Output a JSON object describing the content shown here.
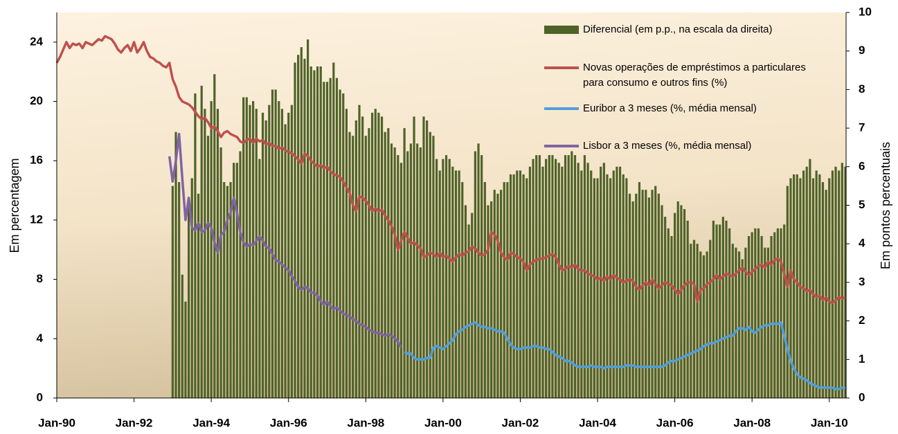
{
  "chart_data": {
    "type": "bar-line",
    "y_label": "Em percentagem",
    "y2_label": "Em pontos percentuais",
    "categories": [
      "Jan-90",
      null,
      null,
      null,
      null,
      null,
      null,
      null,
      null,
      null,
      null,
      null,
      null,
      null,
      null,
      null,
      null,
      null,
      null,
      null,
      null,
      null,
      null,
      null,
      "Jan-92",
      null,
      null,
      null,
      null,
      null,
      null,
      null,
      null,
      null,
      null,
      null,
      null,
      null,
      null,
      null,
      null,
      null,
      null,
      null,
      null,
      null,
      null,
      null,
      "Jan-94",
      null,
      null,
      null,
      null,
      null,
      null,
      null,
      null,
      null,
      null,
      null,
      null,
      null,
      null,
      null,
      null,
      null,
      null,
      null,
      null,
      null,
      null,
      null,
      "Jan-96",
      null,
      null,
      null,
      null,
      null,
      null,
      null,
      null,
      null,
      null,
      null,
      null,
      null,
      null,
      null,
      null,
      null,
      null,
      null,
      null,
      null,
      null,
      null,
      "Jan-98",
      null,
      null,
      null,
      null,
      null,
      null,
      null,
      null,
      null,
      null,
      null,
      null,
      null,
      null,
      null,
      null,
      null,
      null,
      null,
      null,
      null,
      null,
      null,
      "Jan-00",
      null,
      null,
      null,
      null,
      null,
      null,
      null,
      null,
      null,
      null,
      null,
      null,
      null,
      null,
      null,
      null,
      null,
      null,
      null,
      null,
      null,
      null,
      null,
      "Jan-02",
      null,
      null,
      null,
      null,
      null,
      null,
      null,
      null,
      null,
      null,
      null,
      null,
      null,
      null,
      null,
      null,
      null,
      null,
      null,
      null,
      null,
      null,
      null,
      "Jan-04",
      null,
      null,
      null,
      null,
      null,
      null,
      null,
      null,
      null,
      null,
      null,
      null,
      null,
      null,
      null,
      null,
      null,
      null,
      null,
      null,
      null,
      null,
      null,
      "Jan-06",
      null,
      null,
      null,
      null,
      null,
      null,
      null,
      null,
      null,
      null,
      null,
      null,
      null,
      null,
      null,
      null,
      null,
      null,
      null,
      null,
      null,
      null,
      null,
      "Jan-08",
      null,
      null,
      null,
      null,
      null,
      null,
      null,
      null,
      null,
      null,
      null,
      null,
      null,
      null,
      null,
      null,
      null,
      null,
      null,
      null,
      null,
      null,
      null,
      "Jan-10",
      null,
      null,
      null,
      null,
      null
    ],
    "series": [
      {
        "name": "Diferencial (em p.p., na escala da direita)",
        "type": "bar",
        "axis": "y2",
        "color": "#4f6228",
        "values": [
          null,
          null,
          null,
          null,
          null,
          null,
          null,
          null,
          null,
          null,
          null,
          null,
          null,
          null,
          null,
          null,
          null,
          null,
          null,
          null,
          null,
          null,
          null,
          null,
          null,
          null,
          null,
          null,
          null,
          null,
          null,
          null,
          null,
          null,
          null,
          null,
          5.5,
          6.9,
          5.6,
          3.2,
          2.5,
          5.2,
          5.7,
          7.9,
          5.3,
          8.1,
          7.5,
          6.8,
          7.7,
          8.4,
          7.5,
          6.5,
          5.6,
          5.5,
          5.6,
          6.1,
          6.1,
          6.4,
          7.8,
          7.8,
          7.6,
          7.7,
          7.5,
          6.2,
          7.4,
          7.2,
          7.6,
          8.0,
          8.0,
          7.7,
          7.5,
          7.1,
          7.4,
          7.6,
          8.7,
          8.9,
          9.1,
          8.8,
          9.3,
          8.6,
          8.5,
          8.6,
          8.6,
          8.2,
          8.2,
          8.3,
          8.7,
          8.3,
          8.0,
          7.9,
          7.5,
          6.9,
          6.8,
          7.2,
          7.6,
          7.3,
          6.8,
          7.0,
          7.4,
          7.5,
          7.4,
          7.3,
          6.9,
          7.0,
          6.6,
          6.5,
          6.3,
          6.1,
          7.0,
          6.4,
          6.6,
          7.3,
          6.6,
          6.5,
          7.3,
          7.2,
          6.9,
          6.8,
          6.2,
          5.9,
          6.2,
          6.3,
          6.2,
          6.0,
          5.9,
          5.9,
          5.6,
          5.0,
          4.5,
          4.8,
          6.4,
          6.6,
          6.3,
          5.6,
          5.0,
          5.1,
          5.4,
          5.3,
          5.4,
          5.6,
          5.6,
          5.8,
          5.8,
          5.9,
          5.9,
          5.8,
          5.7,
          6.0,
          6.2,
          6.3,
          6.3,
          6.0,
          6.2,
          6.3,
          6.3,
          6.2,
          6.1,
          6.0,
          6.3,
          6.3,
          6.4,
          6.3,
          6.1,
          5.9,
          6.3,
          6.1,
          5.9,
          5.7,
          5.7,
          6.0,
          6.1,
          5.8,
          5.7,
          5.9,
          6.0,
          6.0,
          5.8,
          5.7,
          5.3,
          5.1,
          5.3,
          5.6,
          5.4,
          5.4,
          5.2,
          5.4,
          5.5,
          5.3,
          5.0,
          4.7,
          4.4,
          4.2,
          4.8,
          5.1,
          5.0,
          4.9,
          4.6,
          4.0,
          4.1,
          4.0,
          3.8,
          3.7,
          3.8,
          4.1,
          4.6,
          4.5,
          4.5,
          4.7,
          4.6,
          4.4,
          4.0,
          3.9,
          3.8,
          3.6,
          3.9,
          4.2,
          4.3,
          4.4,
          4.4,
          4.2,
          3.9,
          3.9,
          4.2,
          4.3,
          4.4,
          4.4,
          4.5,
          5.5,
          5.7,
          5.8,
          5.8,
          5.7,
          5.9,
          6.0,
          6.2,
          5.7,
          5.9,
          5.8,
          5.6,
          5.4,
          5.7,
          5.9,
          6.0,
          5.9,
          6.1,
          6.0
        ]
      },
      {
        "name": "Novas operações de empréstimos a particulares para consumo e outros fins (%)",
        "type": "line",
        "axis": "y",
        "color": "#c0504d",
        "values": [
          22.6,
          23.0,
          23.5,
          24.0,
          23.6,
          23.9,
          23.8,
          23.9,
          23.6,
          24.0,
          23.9,
          23.8,
          24.0,
          24.2,
          24.1,
          24.4,
          24.3,
          24.2,
          23.9,
          23.5,
          23.3,
          23.6,
          23.8,
          23.4,
          24.0,
          23.3,
          23.6,
          24.0,
          23.4,
          23.0,
          22.9,
          22.7,
          22.6,
          22.4,
          22.3,
          22.6,
          21.5,
          21.0,
          20.3,
          20.0,
          19.9,
          19.8,
          19.6,
          19.3,
          19.0,
          18.8,
          18.9,
          18.6,
          18.2,
          18.3,
          18.0,
          17.6,
          17.9,
          18.0,
          17.8,
          17.7,
          17.6,
          17.3,
          17.2,
          17.4,
          17.5,
          17.2,
          17.5,
          17.3,
          17.4,
          17.1,
          17.2,
          17.0,
          17.0,
          16.8,
          16.9,
          16.7,
          16.6,
          16.5,
          16.3,
          16.1,
          15.8,
          16.5,
          16.3,
          16.0,
          15.8,
          15.6,
          15.7,
          15.5,
          15.6,
          15.3,
          15.1,
          15.0,
          14.9,
          14.6,
          14.2,
          13.8,
          13.0,
          12.6,
          13.6,
          13.5,
          13.3,
          13.0,
          12.6,
          12.8,
          12.6,
          12.7,
          12.3,
          12.0,
          11.6,
          11.0,
          10.0,
          10.6,
          11.2,
          10.8,
          10.4,
          10.5,
          10.3,
          10.1,
          9.5,
          9.6,
          9.8,
          9.7,
          9.5,
          9.8,
          9.5,
          9.6,
          9.4,
          9.2,
          9.5,
          9.7,
          9.6,
          9.8,
          9.9,
          10.2,
          10.1,
          9.8,
          9.6,
          9.7,
          10.0,
          11.2,
          11.0,
          10.6,
          9.8,
          9.5,
          9.3,
          9.8,
          9.7,
          9.5,
          9.4,
          9.2,
          8.6,
          9.0,
          9.2,
          9.3,
          9.4,
          9.4,
          9.5,
          9.6,
          9.7,
          9.5,
          9.0,
          8.6,
          8.7,
          8.9,
          8.8,
          9.0,
          8.7,
          8.6,
          8.6,
          8.4,
          8.3,
          8.2,
          8.0,
          8.1,
          7.9,
          8.2,
          8.0,
          8.3,
          8.1,
          8.0,
          7.8,
          7.9,
          8.0,
          7.9,
          7.5,
          7.3,
          7.6,
          7.8,
          7.6,
          8.0,
          7.7,
          7.4,
          7.6,
          7.8,
          7.7,
          7.6,
          7.3,
          7.0,
          7.3,
          7.6,
          7.8,
          7.8,
          7.7,
          6.5,
          7.3,
          7.4,
          7.7,
          7.8,
          8.0,
          8.3,
          8.0,
          8.2,
          8.4,
          8.3,
          8.2,
          8.4,
          8.6,
          8.8,
          8.5,
          8.3,
          8.5,
          8.7,
          8.9,
          9.0,
          8.8,
          9.2,
          9.0,
          9.3,
          9.4,
          9.2,
          8.4,
          7.5,
          8.6,
          8.0,
          7.8,
          7.5,
          7.4,
          7.2,
          7.3,
          7.0,
          6.8,
          6.9,
          6.6,
          6.8,
          6.5,
          6.4,
          6.6,
          6.8,
          6.7,
          6.8
        ]
      },
      {
        "name": "Euribor a 3 meses (%, média mensal)",
        "type": "line",
        "axis": "y",
        "color": "#4f9fdc",
        "values": [
          null,
          null,
          null,
          null,
          null,
          null,
          null,
          null,
          null,
          null,
          null,
          null,
          null,
          null,
          null,
          null,
          null,
          null,
          null,
          null,
          null,
          null,
          null,
          null,
          null,
          null,
          null,
          null,
          null,
          null,
          null,
          null,
          null,
          null,
          null,
          null,
          null,
          null,
          null,
          null,
          null,
          null,
          null,
          null,
          null,
          null,
          null,
          null,
          null,
          null,
          null,
          null,
          null,
          null,
          null,
          null,
          null,
          null,
          null,
          null,
          null,
          null,
          null,
          null,
          null,
          null,
          null,
          null,
          null,
          null,
          null,
          null,
          null,
          null,
          null,
          null,
          null,
          null,
          null,
          null,
          null,
          null,
          null,
          null,
          null,
          null,
          null,
          null,
          null,
          null,
          null,
          null,
          null,
          null,
          null,
          null,
          null,
          null,
          null,
          null,
          null,
          null,
          null,
          null,
          null,
          null,
          null,
          null,
          3.1,
          3.0,
          3.0,
          2.7,
          2.6,
          2.6,
          2.6,
          2.7,
          2.7,
          3.4,
          3.5,
          3.4,
          3.3,
          3.5,
          3.7,
          3.9,
          4.3,
          4.5,
          4.6,
          4.8,
          4.9,
          5.0,
          5.1,
          4.9,
          4.8,
          4.8,
          4.7,
          4.7,
          4.6,
          4.5,
          4.5,
          4.4,
          4.0,
          3.6,
          3.4,
          3.3,
          3.3,
          3.4,
          3.4,
          3.4,
          3.5,
          3.5,
          3.4,
          3.4,
          3.3,
          3.3,
          3.1,
          2.9,
          2.8,
          2.7,
          2.5,
          2.5,
          2.4,
          2.2,
          2.1,
          2.1,
          2.1,
          2.1,
          2.2,
          2.1,
          2.1,
          2.1,
          2.0,
          2.1,
          2.1,
          2.1,
          2.1,
          2.1,
          2.1,
          2.2,
          2.2,
          2.2,
          2.1,
          2.1,
          2.1,
          2.1,
          2.1,
          2.1,
          2.1,
          2.1,
          2.1,
          2.2,
          2.4,
          2.5,
          2.5,
          2.6,
          2.7,
          2.8,
          2.9,
          3.0,
          3.1,
          3.2,
          3.3,
          3.5,
          3.6,
          3.7,
          3.7,
          3.8,
          3.9,
          4.0,
          4.1,
          4.2,
          4.2,
          4.5,
          4.7,
          4.7,
          4.6,
          4.8,
          4.5,
          4.4,
          4.6,
          4.8,
          4.9,
          4.9,
          5.0,
          5.0,
          5.0,
          5.1,
          4.2,
          3.3,
          2.5,
          2.0,
          1.6,
          1.4,
          1.3,
          1.2,
          1.0,
          0.9,
          0.8,
          0.7,
          0.7,
          0.7,
          0.7,
          0.7,
          0.6,
          0.6,
          0.7,
          0.7
        ]
      },
      {
        "name": "Lisbor a 3 meses (%, média mensal)",
        "type": "line",
        "axis": "y",
        "color": "#8064a2",
        "values": [
          null,
          null,
          null,
          null,
          null,
          null,
          null,
          null,
          null,
          null,
          null,
          null,
          null,
          null,
          null,
          null,
          null,
          null,
          null,
          null,
          null,
          null,
          null,
          null,
          null,
          null,
          null,
          null,
          null,
          null,
          null,
          null,
          null,
          null,
          null,
          16.3,
          14.6,
          16.0,
          17.8,
          14.8,
          12.0,
          13.5,
          11.5,
          11.3,
          11.8,
          11.2,
          11.3,
          11.8,
          11.5,
          10.5,
          9.8,
          11.0,
          11.2,
          12.0,
          12.5,
          13.5,
          12.5,
          11.2,
          10.5,
          10.2,
          10.4,
          10.3,
          10.6,
          10.9,
          10.6,
          10.2,
          10.1,
          9.7,
          9.3,
          9.2,
          9.0,
          8.8,
          8.6,
          8.2,
          7.9,
          7.5,
          7.3,
          7.5,
          7.4,
          7.1,
          7.1,
          6.9,
          6.5,
          6.3,
          6.5,
          6.2,
          6.0,
          6.1,
          5.9,
          5.7,
          5.6,
          5.5,
          5.3,
          5.2,
          5.0,
          4.9,
          4.8,
          4.6,
          4.5,
          4.4,
          4.4,
          4.3,
          4.2,
          4.3,
          4.2,
          4.0,
          3.8,
          3.4,
          null,
          null,
          null,
          null,
          null,
          null,
          null,
          null,
          null,
          null,
          null,
          null,
          null,
          null,
          null,
          null,
          null,
          null,
          null,
          null,
          null,
          null,
          null,
          null,
          null,
          null,
          null,
          null,
          null,
          null,
          null,
          null,
          null,
          null,
          null,
          null,
          null,
          null,
          null,
          null,
          null,
          null,
          null,
          null,
          null,
          null,
          null,
          null,
          null,
          null,
          null,
          null,
          null,
          null,
          null,
          null,
          null,
          null,
          null,
          null,
          null,
          null,
          null,
          null,
          null,
          null,
          null,
          null,
          null,
          null,
          null,
          null,
          null,
          null,
          null,
          null,
          null,
          null,
          null,
          null,
          null,
          null,
          null,
          null,
          null,
          null,
          null,
          null,
          null,
          null,
          null,
          null,
          null,
          null,
          null,
          null,
          null,
          null,
          null,
          null,
          null,
          null,
          null,
          null,
          null,
          null,
          null,
          null,
          null,
          null,
          null,
          null,
          null,
          null,
          null,
          null,
          null,
          null,
          null,
          null,
          null,
          null,
          null,
          null,
          null,
          null,
          null,
          null,
          null,
          null,
          null,
          null,
          null,
          null,
          null,
          null,
          null,
          null
        ]
      }
    ],
    "ylim": [
      0,
      26
    ],
    "yticks": [
      0,
      4,
      8,
      12,
      16,
      20,
      24
    ],
    "y2lim": [
      0,
      10
    ],
    "y2ticks": [
      0,
      1,
      2,
      3,
      4,
      5,
      6,
      7,
      8,
      9,
      10
    ],
    "legend": "top-right"
  }
}
